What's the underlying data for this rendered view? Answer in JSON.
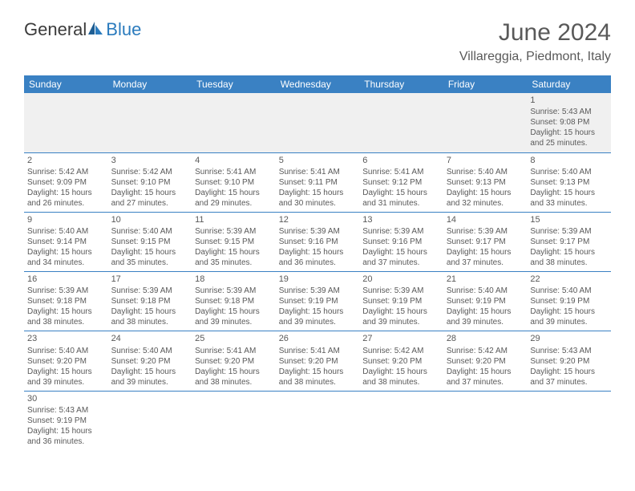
{
  "brand": {
    "part1": "General",
    "part2": "Blue"
  },
  "title": "June 2024",
  "location": "Villareggia, Piedmont, Italy",
  "colors": {
    "header_bg": "#3a81c3",
    "header_text": "#ffffff",
    "body_text": "#595959",
    "first_row_bg": "#f0f0f0",
    "border": "#3a81c3",
    "logo_blue": "#2b7bbd",
    "logo_gray": "#3b3b3b",
    "page_bg": "#ffffff"
  },
  "fonts": {
    "title_size": 30,
    "location_size": 16,
    "header_size": 12,
    "cell_size": 10,
    "daynum_size": 11,
    "logo_size": 22
  },
  "day_headers": [
    "Sunday",
    "Monday",
    "Tuesday",
    "Wednesday",
    "Thursday",
    "Friday",
    "Saturday"
  ],
  "weeks": [
    [
      null,
      null,
      null,
      null,
      null,
      null,
      {
        "n": "1",
        "sr": "5:43 AM",
        "ss": "9:08 PM",
        "dl": "15 hours and 25 minutes."
      }
    ],
    [
      {
        "n": "2",
        "sr": "5:42 AM",
        "ss": "9:09 PM",
        "dl": "15 hours and 26 minutes."
      },
      {
        "n": "3",
        "sr": "5:42 AM",
        "ss": "9:10 PM",
        "dl": "15 hours and 27 minutes."
      },
      {
        "n": "4",
        "sr": "5:41 AM",
        "ss": "9:10 PM",
        "dl": "15 hours and 29 minutes."
      },
      {
        "n": "5",
        "sr": "5:41 AM",
        "ss": "9:11 PM",
        "dl": "15 hours and 30 minutes."
      },
      {
        "n": "6",
        "sr": "5:41 AM",
        "ss": "9:12 PM",
        "dl": "15 hours and 31 minutes."
      },
      {
        "n": "7",
        "sr": "5:40 AM",
        "ss": "9:13 PM",
        "dl": "15 hours and 32 minutes."
      },
      {
        "n": "8",
        "sr": "5:40 AM",
        "ss": "9:13 PM",
        "dl": "15 hours and 33 minutes."
      }
    ],
    [
      {
        "n": "9",
        "sr": "5:40 AM",
        "ss": "9:14 PM",
        "dl": "15 hours and 34 minutes."
      },
      {
        "n": "10",
        "sr": "5:40 AM",
        "ss": "9:15 PM",
        "dl": "15 hours and 35 minutes."
      },
      {
        "n": "11",
        "sr": "5:39 AM",
        "ss": "9:15 PM",
        "dl": "15 hours and 35 minutes."
      },
      {
        "n": "12",
        "sr": "5:39 AM",
        "ss": "9:16 PM",
        "dl": "15 hours and 36 minutes."
      },
      {
        "n": "13",
        "sr": "5:39 AM",
        "ss": "9:16 PM",
        "dl": "15 hours and 37 minutes."
      },
      {
        "n": "14",
        "sr": "5:39 AM",
        "ss": "9:17 PM",
        "dl": "15 hours and 37 minutes."
      },
      {
        "n": "15",
        "sr": "5:39 AM",
        "ss": "9:17 PM",
        "dl": "15 hours and 38 minutes."
      }
    ],
    [
      {
        "n": "16",
        "sr": "5:39 AM",
        "ss": "9:18 PM",
        "dl": "15 hours and 38 minutes."
      },
      {
        "n": "17",
        "sr": "5:39 AM",
        "ss": "9:18 PM",
        "dl": "15 hours and 38 minutes."
      },
      {
        "n": "18",
        "sr": "5:39 AM",
        "ss": "9:18 PM",
        "dl": "15 hours and 39 minutes."
      },
      {
        "n": "19",
        "sr": "5:39 AM",
        "ss": "9:19 PM",
        "dl": "15 hours and 39 minutes."
      },
      {
        "n": "20",
        "sr": "5:39 AM",
        "ss": "9:19 PM",
        "dl": "15 hours and 39 minutes."
      },
      {
        "n": "21",
        "sr": "5:40 AM",
        "ss": "9:19 PM",
        "dl": "15 hours and 39 minutes."
      },
      {
        "n": "22",
        "sr": "5:40 AM",
        "ss": "9:19 PM",
        "dl": "15 hours and 39 minutes."
      }
    ],
    [
      {
        "n": "23",
        "sr": "5:40 AM",
        "ss": "9:20 PM",
        "dl": "15 hours and 39 minutes."
      },
      {
        "n": "24",
        "sr": "5:40 AM",
        "ss": "9:20 PM",
        "dl": "15 hours and 39 minutes."
      },
      {
        "n": "25",
        "sr": "5:41 AM",
        "ss": "9:20 PM",
        "dl": "15 hours and 38 minutes."
      },
      {
        "n": "26",
        "sr": "5:41 AM",
        "ss": "9:20 PM",
        "dl": "15 hours and 38 minutes."
      },
      {
        "n": "27",
        "sr": "5:42 AM",
        "ss": "9:20 PM",
        "dl": "15 hours and 38 minutes."
      },
      {
        "n": "28",
        "sr": "5:42 AM",
        "ss": "9:20 PM",
        "dl": "15 hours and 37 minutes."
      },
      {
        "n": "29",
        "sr": "5:43 AM",
        "ss": "9:20 PM",
        "dl": "15 hours and 37 minutes."
      }
    ],
    [
      {
        "n": "30",
        "sr": "5:43 AM",
        "ss": "9:19 PM",
        "dl": "15 hours and 36 minutes."
      },
      null,
      null,
      null,
      null,
      null,
      null
    ]
  ],
  "labels": {
    "sunrise": "Sunrise:",
    "sunset": "Sunset:",
    "daylight": "Daylight:"
  }
}
